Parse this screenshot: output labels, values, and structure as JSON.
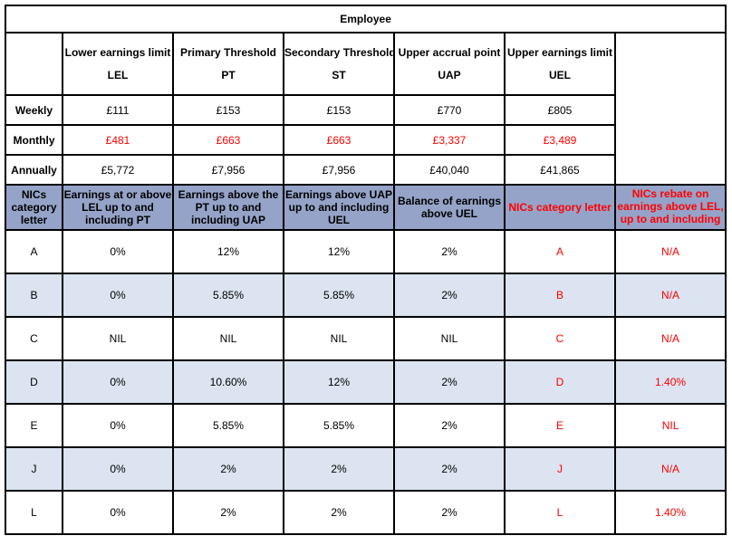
{
  "title": "Employee",
  "thresholds": {
    "headers": [
      {
        "full": "Lower earnings limit",
        "abbr": "LEL"
      },
      {
        "full": "Primary Threshold",
        "abbr": "PT"
      },
      {
        "full": "Secondary Threshold",
        "abbr": "ST"
      },
      {
        "full": "Upper accrual point",
        "abbr": "UAP"
      },
      {
        "full": "Upper earnings limit",
        "abbr": "UEL"
      }
    ],
    "rows": [
      {
        "label": "Weekly",
        "values": [
          "£111",
          "£153",
          "£153",
          "£770",
          "£805"
        ],
        "color": "#000000"
      },
      {
        "label": "Monthly",
        "values": [
          "£481",
          "£663",
          "£663",
          "£3,337",
          "£3,489"
        ],
        "color": "#ff0000"
      },
      {
        "label": "Annually",
        "values": [
          "£5,772",
          "£7,956",
          "£7,956",
          "£40,040",
          "£41,865"
        ],
        "color": "#000000"
      }
    ]
  },
  "rates": {
    "headers": [
      "NICs category letter",
      "Earnings at or above LEL up to and including PT",
      "Earnings above the PT up to and including UAP",
      "Earnings above UAP up to and including UEL",
      "Balance of earnings above UEL",
      "NICs category letter",
      "NICs rebate on earnings above LEL, up to and including PT"
    ],
    "rows": [
      [
        "A",
        "0%",
        "12%",
        "12%",
        "2%",
        "A",
        "N/A"
      ],
      [
        "B",
        "0%",
        "5.85%",
        "5.85%",
        "2%",
        "B",
        "N/A"
      ],
      [
        "C",
        "NIL",
        "NIL",
        "NIL",
        "NIL",
        "C",
        "N/A"
      ],
      [
        "D",
        "0%",
        "10.60%",
        "12%",
        "2%",
        "D",
        "1.40%"
      ],
      [
        "E",
        "0%",
        "5.85%",
        "5.85%",
        "2%",
        "E",
        "NIL"
      ],
      [
        "J",
        "0%",
        "2%",
        "2%",
        "2%",
        "J",
        "N/A"
      ],
      [
        "L",
        "0%",
        "2%",
        "2%",
        "2%",
        "L",
        "1.40%"
      ]
    ]
  },
  "colors": {
    "header_bg": "#95a3c8",
    "shaded_row_bg": "#dbe4f0",
    "accent_red": "#ff0000"
  }
}
